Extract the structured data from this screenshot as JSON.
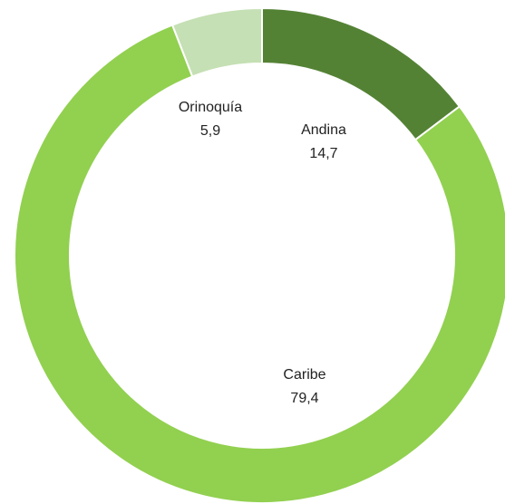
{
  "chart_data": {
    "type": "donut",
    "categories": [
      "Andina",
      "Caribe",
      "Orinoquía"
    ],
    "values": [
      14.7,
      79.4,
      5.9
    ],
    "value_labels": [
      "14,7",
      "79,4",
      "5,9"
    ],
    "colors": [
      "#548235",
      "#92d050",
      "#c5e0b4"
    ]
  }
}
